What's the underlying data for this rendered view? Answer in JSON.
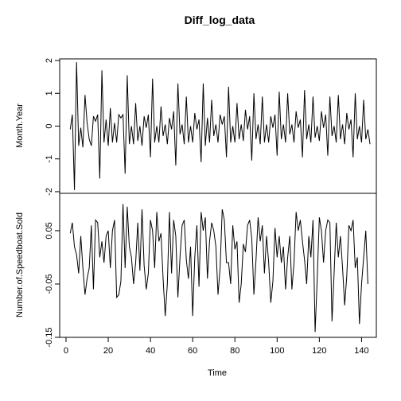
{
  "chart_data": {
    "type": "line",
    "title": "Diff_log_data",
    "xlabel": "Time",
    "x_ticks": [
      "0",
      "20",
      "40",
      "60",
      "80",
      "100",
      "120",
      "140"
    ],
    "xlim": [
      -3,
      147
    ],
    "series": [
      {
        "ylabel": "Month.Year",
        "ylim": [
          -2.05,
          2.05
        ],
        "y_ticks": [
          "-2",
          "-1",
          "0",
          "1",
          "2"
        ],
        "x_start": 2,
        "values": [
          -0.1,
          0.35,
          -1.95,
          1.95,
          -0.6,
          -0.05,
          -0.65,
          0.95,
          0.1,
          -0.4,
          -0.6,
          0.3,
          0.15,
          0.35,
          -1.6,
          1.7,
          -0.5,
          0.2,
          -0.6,
          0.55,
          -0.5,
          0.1,
          -0.5,
          0.35,
          0.25,
          0.35,
          -1.45,
          1.55,
          -0.55,
          0.0,
          -0.55,
          0.7,
          -0.45,
          0.0,
          -0.6,
          0.3,
          -0.05,
          0.35,
          -0.95,
          1.45,
          -0.5,
          0.0,
          -0.5,
          0.6,
          -0.3,
          0.05,
          -0.55,
          0.25,
          -0.1,
          0.45,
          -1.2,
          1.3,
          -0.25,
          0.05,
          -0.55,
          0.9,
          -0.5,
          0.0,
          -0.5,
          0.4,
          -0.1,
          0.2,
          -1.1,
          1.3,
          -0.6,
          0.25,
          -0.5,
          0.8,
          -0.3,
          0.05,
          -0.5,
          0.35,
          0.05,
          0.3,
          -0.95,
          1.2,
          -0.5,
          0.0,
          -0.5,
          0.7,
          -0.4,
          0.05,
          -0.45,
          0.5,
          -0.1,
          0.3,
          -1.05,
          1.0,
          -0.4,
          0.05,
          -0.55,
          0.9,
          -0.5,
          0.05,
          -0.5,
          0.3,
          -0.05,
          0.35,
          -0.9,
          1.05,
          -0.4,
          0.05,
          -0.5,
          1.0,
          -0.25,
          0.05,
          -0.5,
          0.45,
          -0.05,
          0.2,
          -0.95,
          1.1,
          -0.4,
          0.05,
          -0.5,
          0.9,
          -0.35,
          0.0,
          -0.45,
          0.45,
          -0.05,
          0.35,
          -0.9,
          0.9,
          -0.3,
          0.0,
          -0.5,
          0.95,
          -0.4,
          0.05,
          -0.55,
          0.4,
          -0.1,
          0.2,
          -0.95,
          1.0,
          -0.4,
          0.0,
          -0.5,
          0.8,
          -0.4,
          -0.1,
          -0.55
        ]
      },
      {
        "ylabel": "Number.of.Speedboat.Sold",
        "ylim": [
          -0.15,
          0.12
        ],
        "y_ticks": [
          "-0.15",
          "-0.05",
          "0.05"
        ],
        "x_start": 2,
        "values": [
          0.045,
          0.065,
          0.02,
          0.005,
          -0.03,
          0.04,
          -0.02,
          -0.07,
          -0.04,
          -0.02,
          0.06,
          -0.06,
          0.07,
          0.065,
          0.0,
          0.03,
          -0.01,
          0.04,
          0.05,
          -0.02,
          0.05,
          0.07,
          -0.075,
          -0.07,
          -0.045,
          0.1,
          -0.02,
          0.095,
          0.02,
          0.0,
          -0.05,
          -0.01,
          0.065,
          -0.025,
          0.09,
          -0.015,
          -0.06,
          -0.03,
          0.07,
          0.05,
          -0.02,
          0.085,
          0.03,
          0.045,
          -0.04,
          -0.11,
          -0.05,
          0.085,
          -0.03,
          0.07,
          0.04,
          -0.075,
          0.0,
          0.06,
          0.07,
          -0.005,
          -0.04,
          0.02,
          -0.11,
          0.0,
          0.06,
          -0.055,
          0.085,
          0.05,
          0.075,
          -0.04,
          0.03,
          0.065,
          0.05,
          0.02,
          -0.07,
          -0.02,
          0.09,
          0.07,
          -0.01,
          -0.01,
          -0.05,
          0.06,
          0.015,
          0.03,
          -0.085,
          -0.05,
          0.025,
          0.01,
          0.06,
          0.07,
          0.035,
          -0.07,
          -0.005,
          0.075,
          0.03,
          0.06,
          -0.03,
          0.04,
          -0.01,
          -0.085,
          -0.045,
          0.055,
          0.0,
          0.04,
          -0.01,
          0.02,
          -0.06,
          0.0,
          0.04,
          -0.06,
          -0.01,
          0.085,
          0.05,
          0.07,
          0.03,
          -0.005,
          -0.05,
          0.04,
          0.0,
          0.07,
          -0.14,
          -0.04,
          0.075,
          0.05,
          -0.01,
          0.05,
          0.07,
          0.065,
          -0.12,
          -0.03,
          0.065,
          0.0,
          0.04,
          -0.02,
          -0.09,
          -0.035,
          0.06,
          0.05,
          0.07,
          -0.02,
          0.0,
          -0.125,
          -0.05,
          0.0,
          0.05,
          -0.05
        ]
      }
    ]
  }
}
